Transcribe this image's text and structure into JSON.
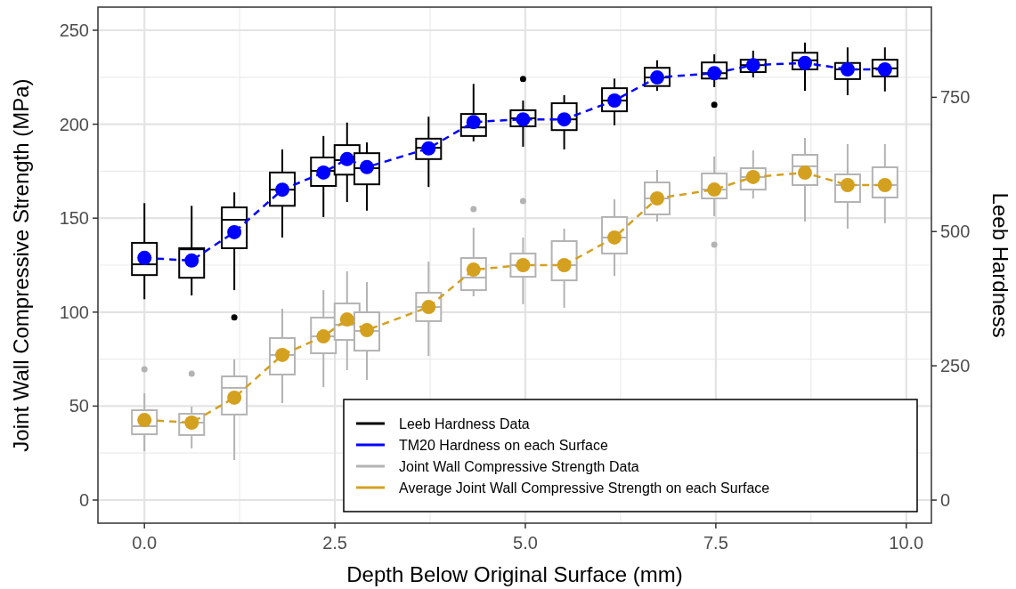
{
  "chart_data": {
    "type": "box",
    "xlabel": "Depth Below Original Surface (mm)",
    "ylabel": "Joint Wall Compressive Strength (MPa)",
    "y2label": "Leeb Hardness",
    "xlim": [
      -0.61,
      10.33
    ],
    "xticks": [
      {
        "value": 0,
        "label": "0.0"
      },
      {
        "value": 2.5,
        "label": "2.5"
      },
      {
        "value": 5,
        "label": "5.0"
      },
      {
        "value": 7.5,
        "label": "7.5"
      },
      {
        "value": 10,
        "label": "10.0"
      }
    ],
    "ylim": [
      -12.3,
      262.3
    ],
    "yticks": [
      0,
      50,
      100,
      150,
      200,
      250
    ],
    "y2lim": [
      -43,
      918
    ],
    "y2ticks": [
      0,
      250,
      500,
      750
    ],
    "grid": true,
    "legend": "bottom right",
    "series": [
      {
        "name": "Leeb Hardness Data",
        "axis": "y2",
        "color": "#000000",
        "x": [
          0,
          0.62,
          1.18,
          1.81,
          2.35,
          2.66,
          2.92,
          3.73,
          4.32,
          4.97,
          5.51,
          6.17,
          6.73,
          7.48,
          7.99,
          8.67,
          9.23,
          9.72
        ],
        "boxes": [
          {
            "low": 374,
            "q1": 419,
            "median": 439,
            "q3": 479,
            "high": 553
          },
          {
            "low": 381,
            "q1": 414,
            "median": 467,
            "q3": 469,
            "high": 548
          },
          {
            "low": 391,
            "q1": 469,
            "median": 522,
            "q3": 545,
            "high": 573,
            "outliers": [
              340
            ]
          },
          {
            "low": 489,
            "q1": 548,
            "median": 578,
            "q3": 610,
            "high": 653
          },
          {
            "low": 527,
            "q1": 585,
            "median": 613,
            "q3": 638,
            "high": 678
          },
          {
            "low": 555,
            "q1": 606,
            "median": 633,
            "q3": 661,
            "high": 703
          },
          {
            "low": 539,
            "q1": 588,
            "median": 618,
            "q3": 646,
            "high": 666
          },
          {
            "low": 583,
            "q1": 635,
            "median": 656,
            "q3": 673,
            "high": 714
          },
          {
            "low": 668,
            "q1": 678,
            "median": 694,
            "q3": 719,
            "high": 775
          },
          {
            "low": 658,
            "q1": 696,
            "median": 711,
            "q3": 726,
            "high": 744,
            "outliers": [
              784
            ]
          },
          {
            "low": 653,
            "q1": 689,
            "median": 709,
            "q3": 739,
            "high": 754
          },
          {
            "low": 698,
            "q1": 724,
            "median": 744,
            "q3": 767,
            "high": 785
          },
          {
            "low": 762,
            "q1": 771,
            "median": 787,
            "q3": 805,
            "high": 819
          },
          {
            "low": 769,
            "q1": 785,
            "median": 795,
            "q3": 815,
            "high": 830,
            "outliers": [
              736
            ]
          },
          {
            "low": 787,
            "q1": 797,
            "median": 810,
            "q3": 820,
            "high": 837
          },
          {
            "low": 762,
            "q1": 802,
            "median": 819,
            "q3": 833,
            "high": 852
          },
          {
            "low": 754,
            "q1": 784,
            "median": 802,
            "q3": 814,
            "high": 843
          },
          {
            "low": 761,
            "q1": 789,
            "median": 804,
            "q3": 820,
            "high": 843
          }
        ]
      },
      {
        "name": "TM20 Hardness on each Surface",
        "type": "line",
        "axis": "y2",
        "color": "#0000ff",
        "marker": "circle",
        "line_style": "dashed",
        "x": [
          0,
          0.62,
          1.18,
          1.81,
          2.35,
          2.66,
          2.92,
          3.73,
          4.32,
          4.97,
          5.51,
          6.17,
          6.73,
          7.48,
          7.99,
          8.67,
          9.23,
          9.72
        ],
        "values": [
          451,
          446,
          499,
          578,
          610,
          635,
          620,
          655,
          704,
          709,
          709,
          744,
          787,
          795,
          810,
          814,
          802,
          802
        ]
      },
      {
        "name": "Joint Wall Compressive Strength Data",
        "color": "#b3b3b3",
        "x": [
          0,
          0.62,
          1.18,
          1.81,
          2.35,
          2.66,
          2.92,
          3.73,
          4.32,
          4.97,
          5.51,
          6.17,
          6.73,
          7.48,
          7.99,
          8.67,
          9.23,
          9.72
        ],
        "boxes": [
          {
            "low": 26.0,
            "q1": 35.0,
            "median": 39.3,
            "q3": 47.8,
            "high": 56.8,
            "outliers": [
              69.6
            ]
          },
          {
            "low": 27.5,
            "q1": 34.6,
            "median": 41.2,
            "q3": 45.9,
            "high": 49.7,
            "outliers": [
              67.2
            ]
          },
          {
            "low": 21.3,
            "q1": 45.5,
            "median": 59.7,
            "q3": 65.8,
            "high": 74.8
          },
          {
            "low": 51.6,
            "q1": 66.8,
            "median": 77.2,
            "q3": 86.2,
            "high": 101.8
          },
          {
            "low": 60.1,
            "q1": 78.1,
            "median": 87.1,
            "q3": 97.1,
            "high": 111.7
          },
          {
            "low": 69.1,
            "q1": 85.2,
            "median": 93.3,
            "q3": 104.6,
            "high": 121.7
          },
          {
            "low": 63.9,
            "q1": 79.5,
            "median": 90.0,
            "q3": 99.9,
            "high": 116.0
          },
          {
            "low": 76.7,
            "q1": 95.2,
            "median": 102.7,
            "q3": 110.3,
            "high": 126.9
          },
          {
            "low": 108.4,
            "q1": 111.7,
            "median": 118.4,
            "q3": 128.8,
            "high": 144.9,
            "outliers": [
              154.8
            ]
          },
          {
            "low": 104.2,
            "q1": 118.8,
            "median": 125.0,
            "q3": 131.2,
            "high": 139.7,
            "outliers": [
              159.1
            ]
          },
          {
            "low": 102.3,
            "q1": 116.9,
            "median": 125.0,
            "q3": 137.8,
            "high": 144.4
          },
          {
            "low": 119.3,
            "q1": 131.2,
            "median": 139.7,
            "q3": 150.6,
            "high": 160.0
          },
          {
            "low": 148.2,
            "q1": 152.0,
            "median": 160.5,
            "q3": 169.0,
            "high": 175.7
          },
          {
            "low": 151.0,
            "q1": 160.5,
            "median": 165.2,
            "q3": 173.8,
            "high": 182.8,
            "outliers": [
              135.9
            ]
          },
          {
            "low": 160.5,
            "q1": 165.2,
            "median": 171.9,
            "q3": 176.6,
            "high": 186.1
          },
          {
            "low": 148.2,
            "q1": 167.6,
            "median": 177.6,
            "q3": 183.7,
            "high": 192.7
          },
          {
            "low": 144.4,
            "q1": 158.6,
            "median": 167.6,
            "q3": 173.3,
            "high": 189.4
          },
          {
            "low": 147.3,
            "q1": 161.0,
            "median": 167.6,
            "q3": 177.1,
            "high": 189.4
          }
        ]
      },
      {
        "name": "Average Joint Wall Compressive Strength on each Surface",
        "type": "line",
        "color": "#d4a020",
        "marker": "circle",
        "line_style": "dashed",
        "x": [
          0,
          0.62,
          1.18,
          1.81,
          2.35,
          2.66,
          2.92,
          3.73,
          4.32,
          4.97,
          5.51,
          6.17,
          6.73,
          7.48,
          7.99,
          8.67,
          9.23,
          9.72
        ],
        "values": [
          42.6,
          41.2,
          54.5,
          77.2,
          87.1,
          96.1,
          90.4,
          102.7,
          122.6,
          125.0,
          125.0,
          139.7,
          160.5,
          165.2,
          171.9,
          174.2,
          167.6,
          167.6
        ]
      }
    ]
  }
}
